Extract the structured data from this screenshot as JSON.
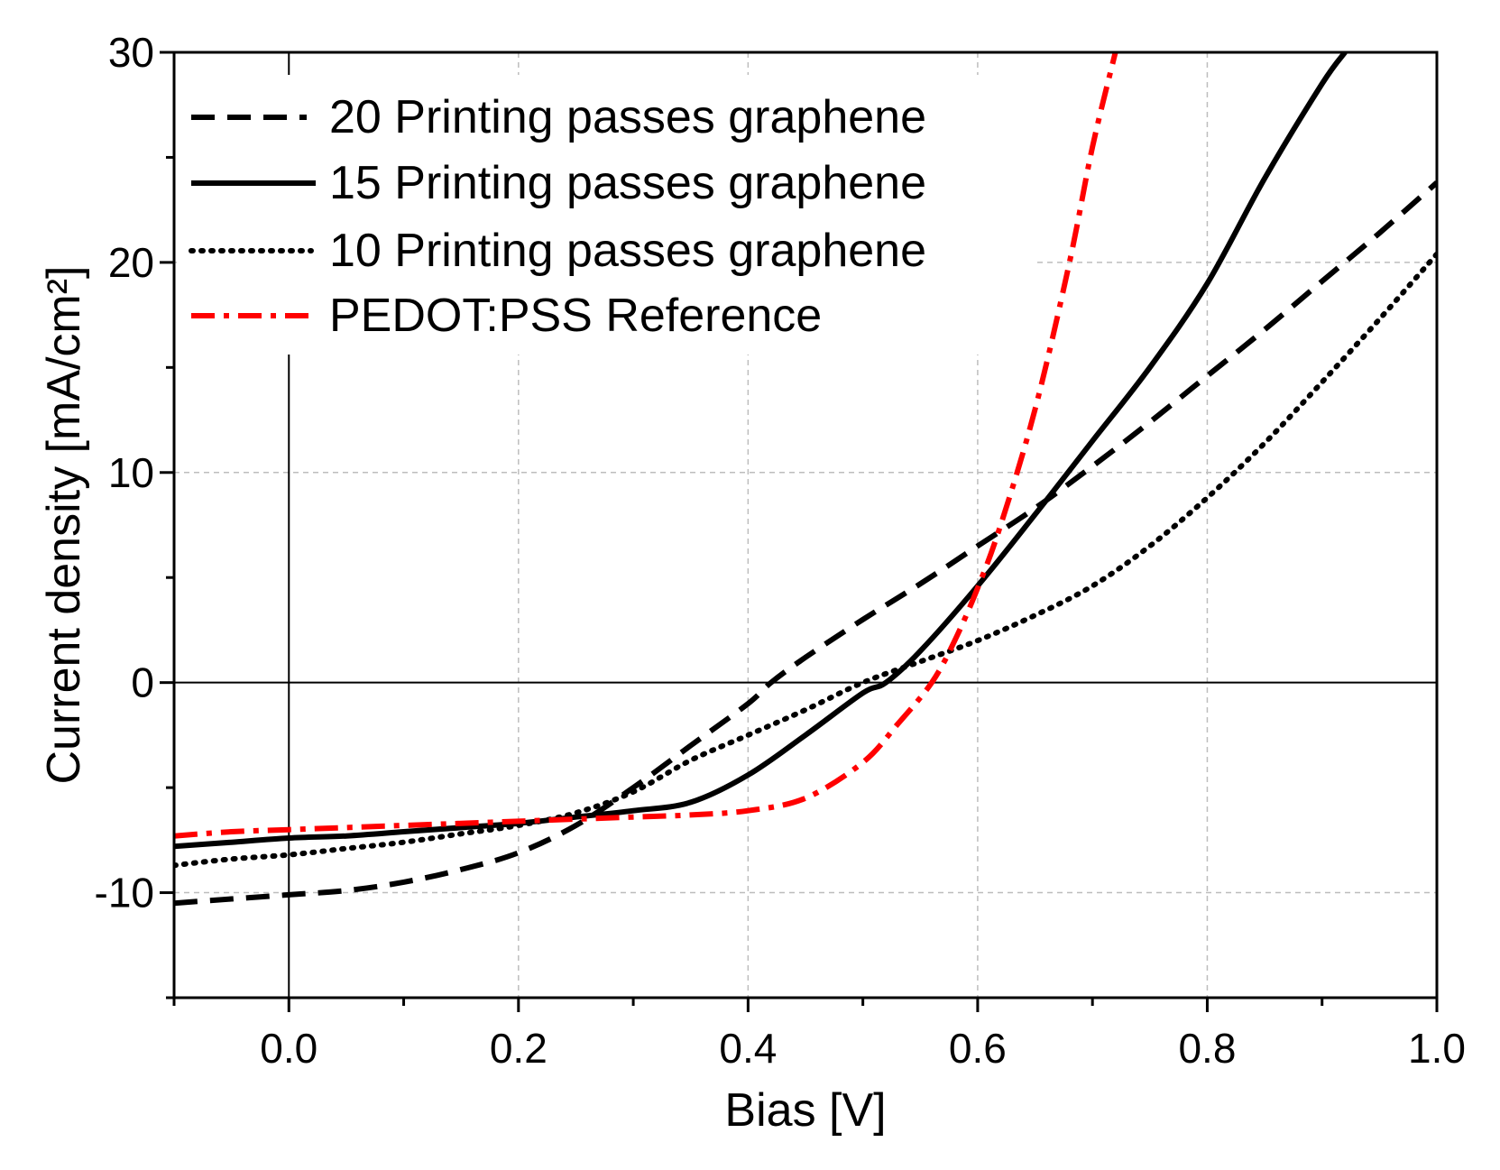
{
  "chart_data": {
    "type": "line",
    "title": "",
    "xlabel": "Bias [V]",
    "ylabel": "Current density [mA/cm²]",
    "xlim": [
      -0.1,
      1.0
    ],
    "ylim": [
      -15,
      30
    ],
    "xticks": [
      0.0,
      0.2,
      0.4,
      0.6,
      0.8,
      1.0
    ],
    "xtick_labels": [
      "0.0",
      "0.2",
      "0.4",
      "0.6",
      "0.8",
      "1.0"
    ],
    "yticks": [
      -10,
      0,
      10,
      20,
      30
    ],
    "ytick_labels": [
      "-10",
      "0",
      "10",
      "20",
      "30"
    ],
    "grid": true,
    "legend_position": "top-left",
    "series": [
      {
        "name": "20 Printing passes graphene",
        "style": "dashed",
        "color": "#000000",
        "x": [
          -0.1,
          -0.05,
          0.0,
          0.05,
          0.1,
          0.15,
          0.2,
          0.25,
          0.3,
          0.35,
          0.4,
          0.42,
          0.45,
          0.5,
          0.55,
          0.6,
          0.65,
          0.7,
          0.75,
          0.8,
          0.85,
          0.9,
          0.95,
          1.0
        ],
        "y": [
          -10.5,
          -10.3,
          -10.1,
          -9.9,
          -9.5,
          -8.9,
          -8.1,
          -6.8,
          -5.0,
          -3.0,
          -1.0,
          0.0,
          1.2,
          3.0,
          4.7,
          6.5,
          8.3,
          10.3,
          12.4,
          14.6,
          16.8,
          19.1,
          21.4,
          23.8
        ]
      },
      {
        "name": "15 Printing passes graphene",
        "style": "solid",
        "color": "#000000",
        "x": [
          -0.1,
          -0.05,
          0.0,
          0.05,
          0.1,
          0.15,
          0.2,
          0.25,
          0.3,
          0.35,
          0.4,
          0.45,
          0.5,
          0.52,
          0.55,
          0.6,
          0.65,
          0.7,
          0.75,
          0.8,
          0.85,
          0.9,
          0.92
        ],
        "y": [
          -7.8,
          -7.6,
          -7.4,
          -7.3,
          -7.1,
          -6.9,
          -6.7,
          -6.4,
          -6.1,
          -5.7,
          -4.4,
          -2.5,
          -0.5,
          0.0,
          1.5,
          4.6,
          8.0,
          11.5,
          15.0,
          19.0,
          24.0,
          28.5,
          30.0
        ]
      },
      {
        "name": "10 Printing passes graphene",
        "style": "dotted",
        "color": "#000000",
        "x": [
          -0.1,
          -0.05,
          0.0,
          0.05,
          0.1,
          0.15,
          0.2,
          0.25,
          0.3,
          0.35,
          0.4,
          0.45,
          0.5,
          0.55,
          0.6,
          0.65,
          0.7,
          0.75,
          0.8,
          0.85,
          0.9,
          0.95,
          1.0
        ],
        "y": [
          -8.7,
          -8.4,
          -8.2,
          -7.9,
          -7.6,
          -7.2,
          -6.8,
          -6.2,
          -5.2,
          -3.7,
          -2.5,
          -1.3,
          0.0,
          1.0,
          2.0,
          3.2,
          4.6,
          6.5,
          8.8,
          11.4,
          14.3,
          17.3,
          20.4
        ]
      },
      {
        "name": "PEDOT:PSS Reference",
        "style": "dash-dot",
        "color": "#ff0000",
        "x": [
          -0.1,
          -0.05,
          0.0,
          0.05,
          0.1,
          0.15,
          0.2,
          0.25,
          0.3,
          0.35,
          0.4,
          0.45,
          0.5,
          0.53,
          0.56,
          0.58,
          0.6,
          0.62,
          0.65,
          0.68,
          0.7,
          0.72
        ],
        "y": [
          -7.3,
          -7.1,
          -7.0,
          -6.9,
          -6.8,
          -6.7,
          -6.6,
          -6.5,
          -6.4,
          -6.3,
          -6.1,
          -5.5,
          -3.8,
          -2.0,
          0.0,
          2.0,
          4.5,
          7.5,
          13.0,
          20.0,
          25.5,
          30.0
        ]
      }
    ]
  }
}
